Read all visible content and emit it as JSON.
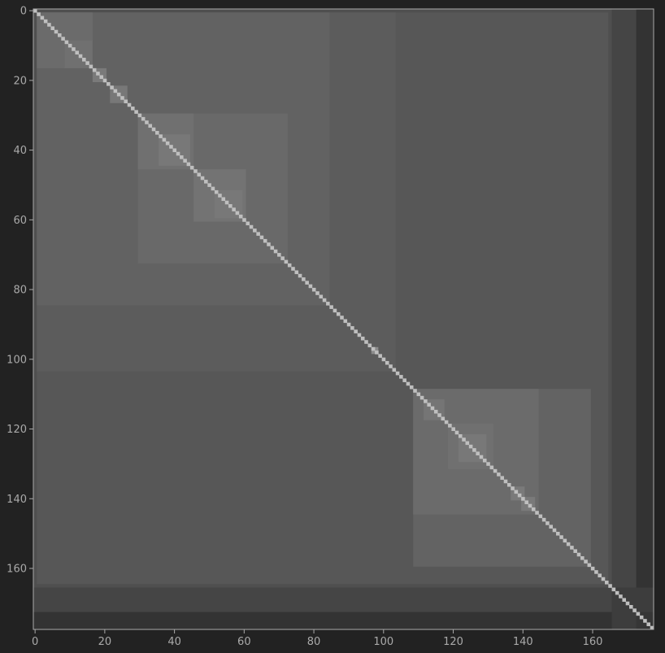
{
  "chart_data": {
    "type": "heatmap",
    "n": 178,
    "xlim": [
      0,
      178
    ],
    "ylim": [
      0,
      178
    ],
    "x_ticks": [
      0,
      20,
      40,
      60,
      80,
      100,
      120,
      140,
      160
    ],
    "y_ticks": [
      0,
      20,
      40,
      60,
      80,
      100,
      120,
      140,
      160
    ],
    "x_tick_labels": [
      "0",
      "20",
      "40",
      "60",
      "80",
      "100",
      "120",
      "140",
      "160"
    ],
    "y_tick_labels": [
      "0",
      "20",
      "40",
      "60",
      "80",
      "100",
      "120",
      "140",
      "160"
    ],
    "y_inverted": true,
    "grid": false,
    "background_level": 0.33,
    "diagonal_level": 0.75,
    "blocks": [
      {
        "start": 0,
        "end": 178,
        "level": 0.2
      },
      {
        "start": 0,
        "end": 173,
        "level": 0.27
      },
      {
        "start": 0,
        "end": 166,
        "level": 0.31
      },
      {
        "start": 1,
        "end": 165,
        "level": 0.34
      },
      {
        "start": 1,
        "end": 104,
        "level": 0.36
      },
      {
        "start": 1,
        "end": 85,
        "level": 0.385
      },
      {
        "start": 1,
        "end": 17,
        "level": 0.42
      },
      {
        "start": 9,
        "end": 17,
        "level": 0.44
      },
      {
        "start": 17,
        "end": 21,
        "level": 0.48
      },
      {
        "start": 22,
        "end": 27,
        "level": 0.47
      },
      {
        "start": 30,
        "end": 73,
        "level": 0.41
      },
      {
        "start": 30,
        "end": 46,
        "level": 0.44
      },
      {
        "start": 36,
        "end": 45,
        "level": 0.47
      },
      {
        "start": 46,
        "end": 61,
        "level": 0.45
      },
      {
        "start": 52,
        "end": 60,
        "level": 0.47
      },
      {
        "start": 97,
        "end": 99,
        "level": 0.55
      },
      {
        "start": 109,
        "end": 160,
        "level": 0.39
      },
      {
        "start": 109,
        "end": 145,
        "level": 0.42
      },
      {
        "start": 112,
        "end": 118,
        "level": 0.46
      },
      {
        "start": 119,
        "end": 132,
        "level": 0.44
      },
      {
        "start": 122,
        "end": 130,
        "level": 0.47
      },
      {
        "start": 137,
        "end": 141,
        "level": 0.48
      },
      {
        "start": 140,
        "end": 144,
        "level": 0.48
      },
      {
        "start": 166,
        "end": 178,
        "level": 0.24
      },
      {
        "start": 173,
        "end": 178,
        "level": 0.21
      }
    ]
  }
}
